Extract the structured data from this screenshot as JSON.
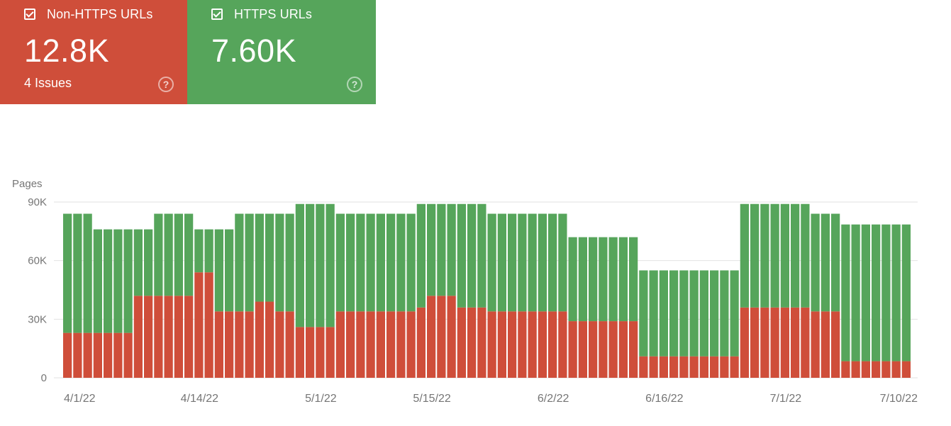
{
  "colors": {
    "red": "#cf4e3a",
    "green": "#56a55b",
    "grid": "#e2e2e2",
    "axis_text": "#757575"
  },
  "cards": [
    {
      "title": "Non-HTTPS URLs",
      "value": "12.8K",
      "sub": "4 Issues",
      "help_icon": "help-circle-icon"
    },
    {
      "title": "HTTPS URLs",
      "value": "7.60K",
      "help_icon": "help-circle-icon"
    }
  ],
  "chart_data": {
    "type": "bar",
    "stacked": true,
    "ylabel": "Pages",
    "ylim": [
      0,
      90000
    ],
    "yticks": [
      "90K",
      "60K",
      "30K",
      "0"
    ],
    "yticks_values": [
      90000,
      60000,
      30000,
      0
    ],
    "xticks": [
      "4/1/22",
      "4/14/22",
      "5/1/22",
      "5/15/22",
      "6/2/22",
      "6/16/22",
      "7/1/22",
      "7/10/22"
    ],
    "xticks_index": [
      1,
      13,
      25,
      36,
      48,
      59,
      71,
      80
    ],
    "series": [
      {
        "name": "Non-HTTPS URLs",
        "color": "#cf4e3a",
        "values": [
          23000,
          23000,
          23000,
          23000,
          23000,
          23000,
          23000,
          42000,
          42000,
          42000,
          42000,
          42000,
          42000,
          54000,
          54000,
          34000,
          34000,
          34000,
          34000,
          39000,
          39000,
          34000,
          34000,
          26000,
          26000,
          26000,
          26000,
          34000,
          34000,
          34000,
          34000,
          34000,
          34000,
          34000,
          34000,
          36000,
          42000,
          42000,
          42000,
          36000,
          36000,
          36000,
          34000,
          34000,
          34000,
          34000,
          34000,
          34000,
          34000,
          34000,
          29000,
          29000,
          29000,
          29000,
          29000,
          29000,
          29000,
          11000,
          11000,
          11000,
          11000,
          11000,
          11000,
          11000,
          11000,
          11000,
          11000,
          36000,
          36000,
          36000,
          36000,
          36000,
          36000,
          36000,
          34000,
          34000,
          34000,
          8500,
          8500,
          8500,
          8500,
          8500,
          8500,
          8500
        ]
      },
      {
        "name": "HTTPS URLs",
        "color": "#56a55b",
        "values": [
          61000,
          61000,
          61000,
          53000,
          53000,
          53000,
          53000,
          34000,
          34000,
          42000,
          42000,
          42000,
          42000,
          22000,
          22000,
          42000,
          42000,
          50000,
          50000,
          45000,
          45000,
          50000,
          50000,
          63000,
          63000,
          63000,
          63000,
          50000,
          50000,
          50000,
          50000,
          50000,
          50000,
          50000,
          50000,
          53000,
          47000,
          47000,
          47000,
          53000,
          53000,
          53000,
          50000,
          50000,
          50000,
          50000,
          50000,
          50000,
          50000,
          50000,
          43000,
          43000,
          43000,
          43000,
          43000,
          43000,
          43000,
          44000,
          44000,
          44000,
          44000,
          44000,
          44000,
          44000,
          44000,
          44000,
          44000,
          53000,
          53000,
          53000,
          53000,
          53000,
          53000,
          53000,
          50000,
          50000,
          50000,
          70000,
          70000,
          70000,
          70000,
          70000,
          70000,
          70000
        ]
      }
    ]
  }
}
